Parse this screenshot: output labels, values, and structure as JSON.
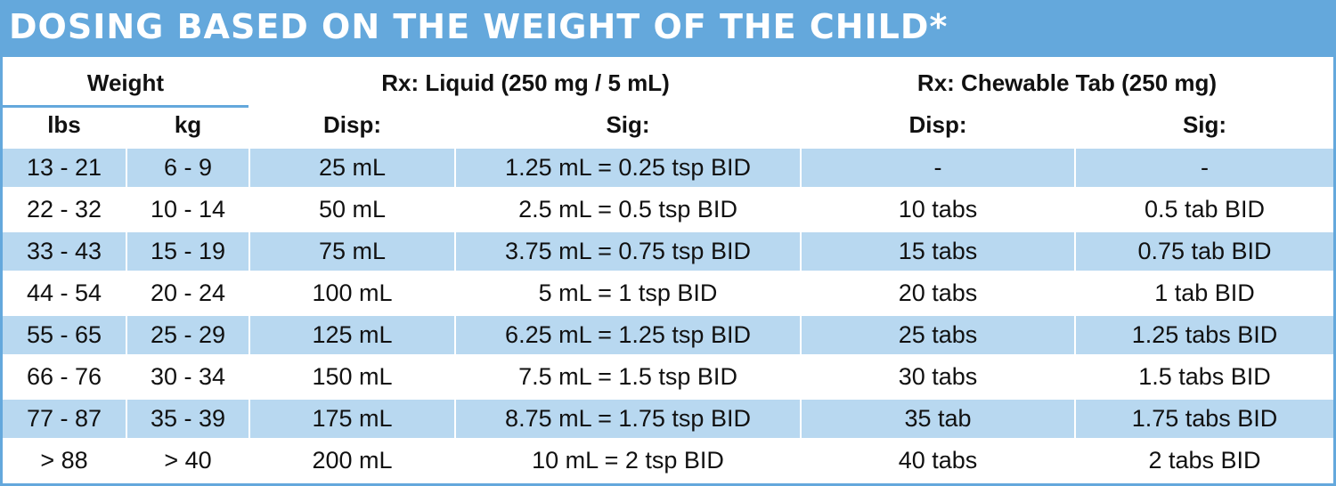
{
  "title": "Dosing based on the weight of the child*",
  "group_headers": {
    "weight": "Weight",
    "liquid": "Rx: Liquid (250 mg / 5 mL)",
    "chewable": "Rx: Chewable Tab (250 mg)"
  },
  "column_headers": [
    "lbs",
    "kg",
    "Disp:",
    "Sig:",
    "Disp:",
    "Sig:"
  ],
  "rows": [
    [
      "13 - 21",
      "6 - 9",
      "25 mL",
      "1.25 mL = 0.25 tsp BID",
      "-",
      "-"
    ],
    [
      "22 - 32",
      "10 - 14",
      "50 mL",
      "2.5 mL = 0.5 tsp BID",
      "10 tabs",
      "0.5 tab BID"
    ],
    [
      "33 - 43",
      "15 - 19",
      "75 mL",
      "3.75 mL = 0.75 tsp BID",
      "15 tabs",
      "0.75 tab BID"
    ],
    [
      "44 - 54",
      "20 - 24",
      "100 mL",
      "5 mL = 1 tsp BID",
      "20 tabs",
      "1 tab BID"
    ],
    [
      "55 - 65",
      "25 - 29",
      "125 mL",
      "6.25 mL = 1.25 tsp BID",
      "25 tabs",
      "1.25 tabs BID"
    ],
    [
      "66 - 76",
      "30 - 34",
      "150 mL",
      "7.5 mL = 1.5 tsp BID",
      "30 tabs",
      "1.5 tabs BID"
    ],
    [
      "77 - 87",
      "35 - 39",
      "175 mL",
      "8.75 mL = 1.75 tsp BID",
      "35 tab",
      "1.75 tabs BID"
    ],
    [
      "> 88",
      "> 40",
      "200 mL",
      "10 mL = 2 tsp BID",
      "40 tabs",
      "2 tabs BID"
    ]
  ],
  "colors": {
    "accent": "#64a8dc",
    "row_shade": "#b8d8f0",
    "title_text": "#ffffff"
  }
}
